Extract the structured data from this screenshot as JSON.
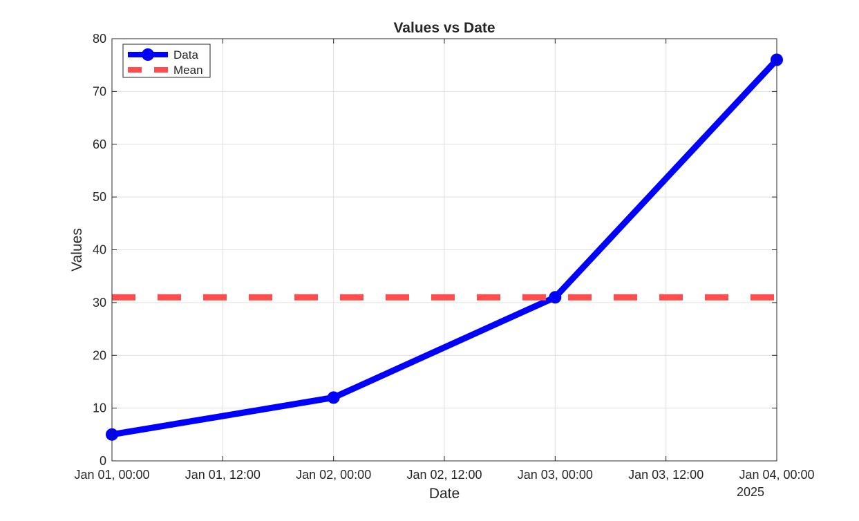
{
  "chart_data": {
    "type": "line",
    "title": "Values vs Date",
    "xlabel": "Date",
    "ylabel": "Values",
    "x_axis": {
      "scale": "time",
      "range": [
        "2025-01-01T00:00",
        "2025-01-04T00:00"
      ],
      "ticks": [
        "2025-01-01T00:00",
        "2025-01-01T12:00",
        "2025-01-02T00:00",
        "2025-01-02T12:00",
        "2025-01-03T00:00",
        "2025-01-03T12:00",
        "2025-01-04T00:00"
      ],
      "tick_labels": [
        "Jan 01, 00:00",
        "Jan 01, 12:00",
        "Jan 02, 00:00",
        "Jan 02, 12:00",
        "Jan 03, 00:00",
        "Jan 03, 12:00",
        "Jan 04, 00:00"
      ],
      "secondary_label": "2025"
    },
    "y_axis": {
      "range": [
        0,
        80
      ],
      "ticks": [
        0,
        10,
        20,
        30,
        40,
        50,
        60,
        70,
        80
      ]
    },
    "grid": true,
    "legend_position": "top-left",
    "series": [
      {
        "name": "Data",
        "style": "solid line with circle markers",
        "color": "#0000ff",
        "x": [
          "2025-01-01T00:00",
          "2025-01-02T00:00",
          "2025-01-03T00:00",
          "2025-01-04T00:00"
        ],
        "y": [
          5,
          12,
          31,
          76
        ]
      },
      {
        "name": "Mean",
        "style": "dashed horizontal line",
        "color": "#ff4d4d",
        "y": 31
      }
    ]
  }
}
